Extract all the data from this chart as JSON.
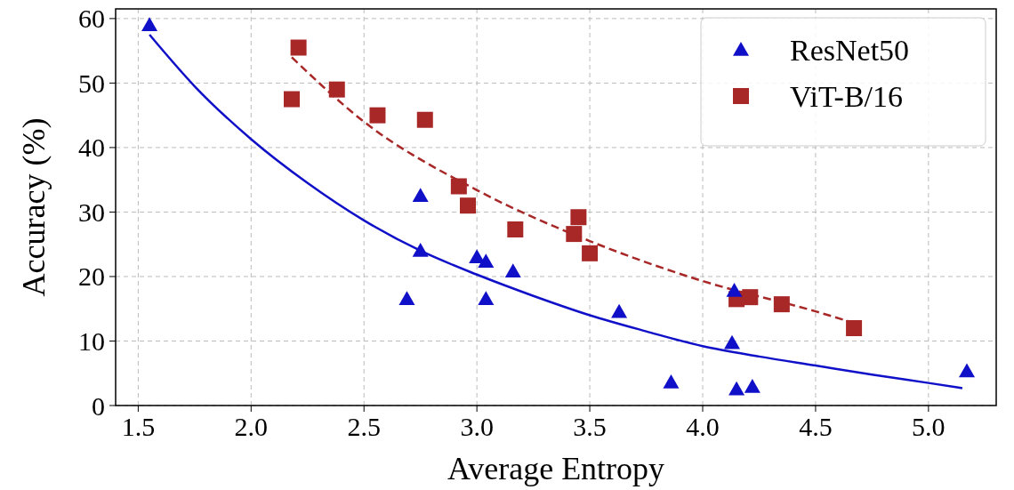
{
  "chart_data": {
    "type": "scatter",
    "xlabel": "Average Entropy",
    "ylabel": "Accuracy (%)",
    "xlim": [
      1.4,
      5.3
    ],
    "ylim": [
      0,
      61.5
    ],
    "xticks": [
      {
        "value": 1.5,
        "label": "1.5"
      },
      {
        "value": 2,
        "label": "2.0"
      },
      {
        "value": 2.5,
        "label": "2.5"
      },
      {
        "value": 3,
        "label": "3.0"
      },
      {
        "value": 3.5,
        "label": "3.5"
      },
      {
        "value": 4,
        "label": "4.0"
      },
      {
        "value": 4.5,
        "label": "4.5"
      },
      {
        "value": 5,
        "label": "5.0"
      }
    ],
    "yticks": [
      0,
      10,
      20,
      30,
      40,
      50,
      60
    ],
    "grid": true,
    "legend": "top right",
    "series": [
      {
        "name": "ResNet50",
        "color": "#1010c8",
        "marker": "triangle",
        "x": [
          1.55,
          2.69,
          2.75,
          2.75,
          3.0,
          3.04,
          3.04,
          3.16,
          3.63,
          3.86,
          4.13,
          4.14,
          4.15,
          4.22,
          5.17
        ],
        "values": [
          59,
          16.5,
          32.5,
          24,
          23,
          22.3,
          16.5,
          20.8,
          14.5,
          3.6,
          9.7,
          17.8,
          2.5,
          2.9,
          5.3
        ]
      },
      {
        "name": "ViT-B/16",
        "color": "#a82828",
        "marker": "square",
        "x": [
          2.18,
          2.21,
          2.38,
          2.56,
          2.77,
          2.92,
          2.96,
          3.17,
          3.43,
          3.45,
          3.5,
          4.15,
          4.21,
          4.35,
          4.67
        ],
        "values": [
          47.5,
          55.5,
          49,
          45,
          44.3,
          34,
          31,
          27.3,
          26.6,
          29.2,
          23.6,
          16.5,
          16.8,
          15.7,
          12
        ]
      },
      {
        "type": "line",
        "color": "#1010c8",
        "line_style": "solid",
        "x": [
          1.55,
          1.75,
          2.0,
          2.25,
          2.5,
          2.75,
          3.0,
          3.25,
          3.5,
          3.75,
          4.0,
          4.25,
          4.5,
          4.75,
          5.0,
          5.15
        ],
        "values": [
          57.5,
          49.5,
          41.3,
          34.5,
          28.7,
          24,
          20.3,
          17,
          14,
          11.5,
          9.2,
          7.6,
          6.2,
          4.8,
          3.5,
          2.7
        ]
      },
      {
        "type": "line",
        "color": "#a82828",
        "line_style": "dashed",
        "x": [
          2.18,
          2.5,
          3.0,
          3.5,
          4.0,
          4.5,
          4.67
        ],
        "values": [
          54,
          44,
          33.4,
          25.5,
          19.3,
          14.6,
          12.8
        ]
      }
    ]
  }
}
